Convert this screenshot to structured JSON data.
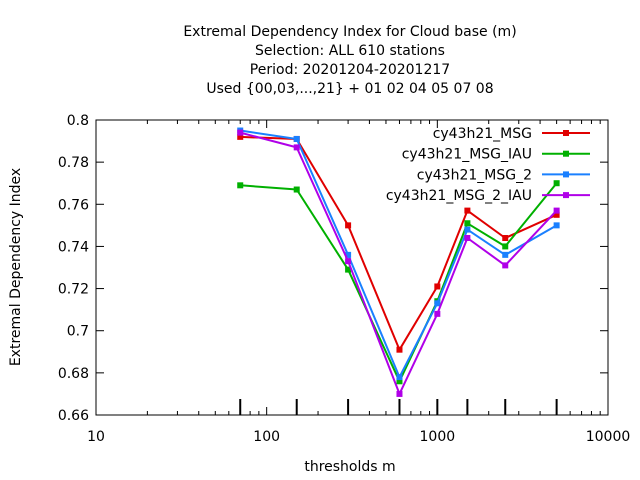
{
  "chart_data": {
    "type": "line",
    "title_lines": [
      "Extremal Dependency Index  for Cloud base (m)",
      "Selection: ALL    610 stations",
      "Period: 20201204-20201217",
      "Used {00,03,...,21} + 01 02 04 05 07 08"
    ],
    "xlabel": "thresholds m",
    "ylabel": "Extremal Dependency Index",
    "x_scale": "log",
    "xlim": [
      10,
      10000
    ],
    "ylim": [
      0.66,
      0.8
    ],
    "x_ticks": [
      10,
      100,
      1000,
      10000
    ],
    "x_tick_labels": [
      "10",
      "100",
      "1000",
      "10000"
    ],
    "y_ticks": [
      0.66,
      0.68,
      0.7,
      0.72,
      0.74,
      0.76,
      0.78,
      0.8
    ],
    "y_tick_labels": [
      "0.66",
      "0.68",
      "0.7",
      "0.72",
      "0.74",
      "0.76",
      "0.78",
      "0.8"
    ],
    "x": [
      70,
      150,
      300,
      600,
      1000,
      1500,
      2500,
      5000
    ],
    "grid": false,
    "legend_position": "top-right",
    "series": [
      {
        "name": "cy43h21_MSG",
        "color": "#e00000",
        "values": [
          0.792,
          0.791,
          0.75,
          0.691,
          0.721,
          0.757,
          0.744,
          0.755
        ]
      },
      {
        "name": "cy43h21_MSG_IAU",
        "color": "#00b000",
        "values": [
          0.769,
          0.767,
          0.729,
          0.676,
          0.714,
          0.751,
          0.74,
          0.77
        ]
      },
      {
        "name": "cy43h21_MSG_2",
        "color": "#1a80ff",
        "values": [
          0.795,
          0.791,
          0.736,
          0.678,
          0.713,
          0.748,
          0.736,
          0.75
        ]
      },
      {
        "name": "cy43h21_MSG_2_IAU",
        "color": "#b000e8",
        "values": [
          0.794,
          0.787,
          0.733,
          0.67,
          0.708,
          0.744,
          0.731,
          0.757
        ]
      }
    ]
  }
}
